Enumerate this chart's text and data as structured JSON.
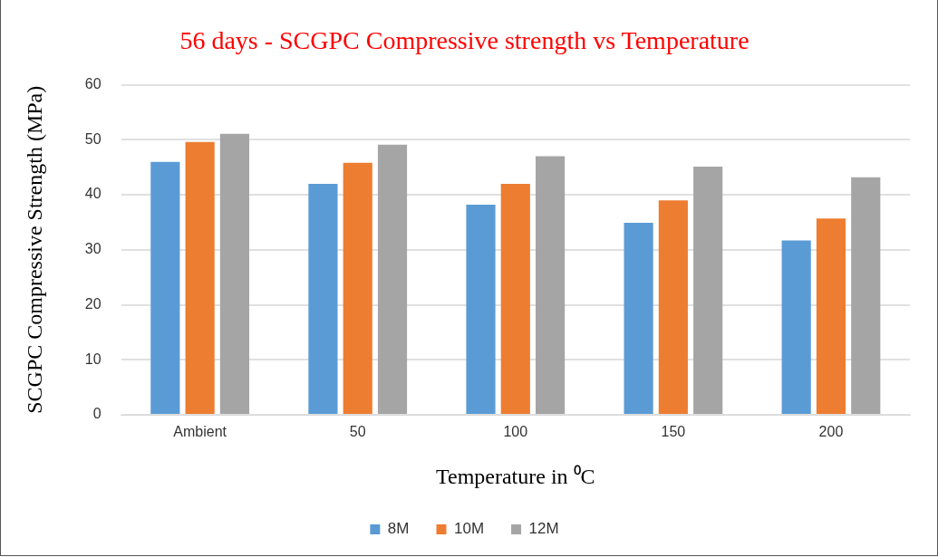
{
  "chart_data": {
    "type": "bar",
    "title": "56 days - SCGPC Compressive strength vs Temperature",
    "xlabel": "Temperature in ⁰C",
    "ylabel": "SCGPC Compressive Strength (MPa)",
    "categories": [
      "Ambient",
      "50",
      "100",
      "150",
      "200"
    ],
    "series": [
      {
        "name": "8M",
        "color": "#5b9bd5",
        "values": [
          46.0,
          42.0,
          38.2,
          34.9,
          31.7
        ]
      },
      {
        "name": "10M",
        "color": "#ed7d31",
        "values": [
          49.6,
          45.8,
          42.0,
          39.0,
          35.7
        ]
      },
      {
        "name": "12M",
        "color": "#a5a5a5",
        "values": [
          51.1,
          49.1,
          47.0,
          45.1,
          43.2
        ]
      }
    ],
    "ylim": [
      0,
      60
    ],
    "yticks": [
      0,
      10,
      20,
      30,
      40,
      50,
      60
    ],
    "grid": "y",
    "legend": "bottom"
  }
}
